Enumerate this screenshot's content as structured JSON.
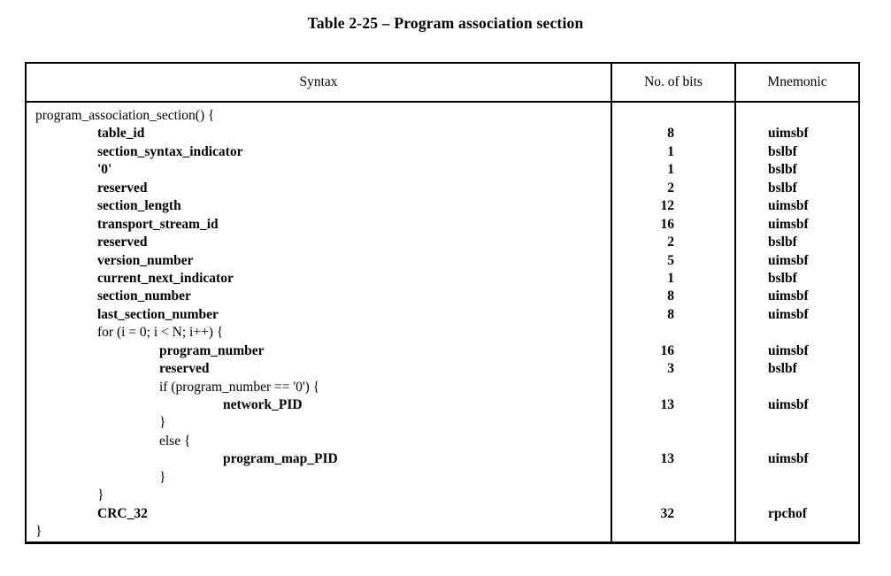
{
  "title": "Table 2-25 – Program association section",
  "table": {
    "headers": {
      "syntax": "Syntax",
      "bits": "No. of bits",
      "mnemonic": "Mnemonic"
    },
    "rows": [
      {
        "indent": 0,
        "bold": false,
        "syntax": "program_association_section() {",
        "bits": "",
        "mnemonic": ""
      },
      {
        "indent": 1,
        "bold": true,
        "syntax": "table_id",
        "bits": "8",
        "mnemonic": "uimsbf"
      },
      {
        "indent": 1,
        "bold": true,
        "syntax": "section_syntax_indicator",
        "bits": "1",
        "mnemonic": "bslbf"
      },
      {
        "indent": 1,
        "bold": true,
        "syntax": "'0'",
        "bits": "1",
        "mnemonic": "bslbf"
      },
      {
        "indent": 1,
        "bold": true,
        "syntax": "reserved",
        "bits": "2",
        "mnemonic": "bslbf"
      },
      {
        "indent": 1,
        "bold": true,
        "syntax": "section_length",
        "bits": "12",
        "mnemonic": "uimsbf"
      },
      {
        "indent": 1,
        "bold": true,
        "syntax": "transport_stream_id",
        "bits": "16",
        "mnemonic": "uimsbf"
      },
      {
        "indent": 1,
        "bold": true,
        "syntax": "reserved",
        "bits": "2",
        "mnemonic": "bslbf"
      },
      {
        "indent": 1,
        "bold": true,
        "syntax": "version_number",
        "bits": "5",
        "mnemonic": "uimsbf"
      },
      {
        "indent": 1,
        "bold": true,
        "syntax": "current_next_indicator",
        "bits": "1",
        "mnemonic": "bslbf"
      },
      {
        "indent": 1,
        "bold": true,
        "syntax": "section_number",
        "bits": "8",
        "mnemonic": "uimsbf"
      },
      {
        "indent": 1,
        "bold": true,
        "syntax": "last_section_number",
        "bits": "8",
        "mnemonic": "uimsbf"
      },
      {
        "indent": 1,
        "bold": false,
        "syntax": "for (i = 0; i < N; i++) {",
        "bits": "",
        "mnemonic": ""
      },
      {
        "indent": 2,
        "bold": true,
        "syntax": "program_number",
        "bits": "16",
        "mnemonic": "uimsbf"
      },
      {
        "indent": 2,
        "bold": true,
        "syntax": "reserved",
        "bits": "3",
        "mnemonic": "bslbf"
      },
      {
        "indent": 2,
        "bold": false,
        "syntax": "if (program_number == '0') {",
        "bits": "",
        "mnemonic": ""
      },
      {
        "indent": 3,
        "bold": true,
        "syntax": "network_PID",
        "bits": "13",
        "mnemonic": "uimsbf"
      },
      {
        "indent": 2,
        "bold": false,
        "syntax": "}",
        "bits": "",
        "mnemonic": ""
      },
      {
        "indent": 2,
        "bold": false,
        "syntax": "else {",
        "bits": "",
        "mnemonic": ""
      },
      {
        "indent": 3,
        "bold": true,
        "syntax": "program_map_PID",
        "bits": "13",
        "mnemonic": "uimsbf"
      },
      {
        "indent": 2,
        "bold": false,
        "syntax": "}",
        "bits": "",
        "mnemonic": ""
      },
      {
        "indent": 1,
        "bold": false,
        "syntax": "}",
        "bits": "",
        "mnemonic": ""
      },
      {
        "indent": 1,
        "bold": true,
        "syntax": "CRC_32",
        "bits": "32",
        "mnemonic": "rpchof"
      },
      {
        "indent": 0,
        "bold": false,
        "syntax": "}",
        "bits": "",
        "mnemonic": ""
      }
    ]
  }
}
